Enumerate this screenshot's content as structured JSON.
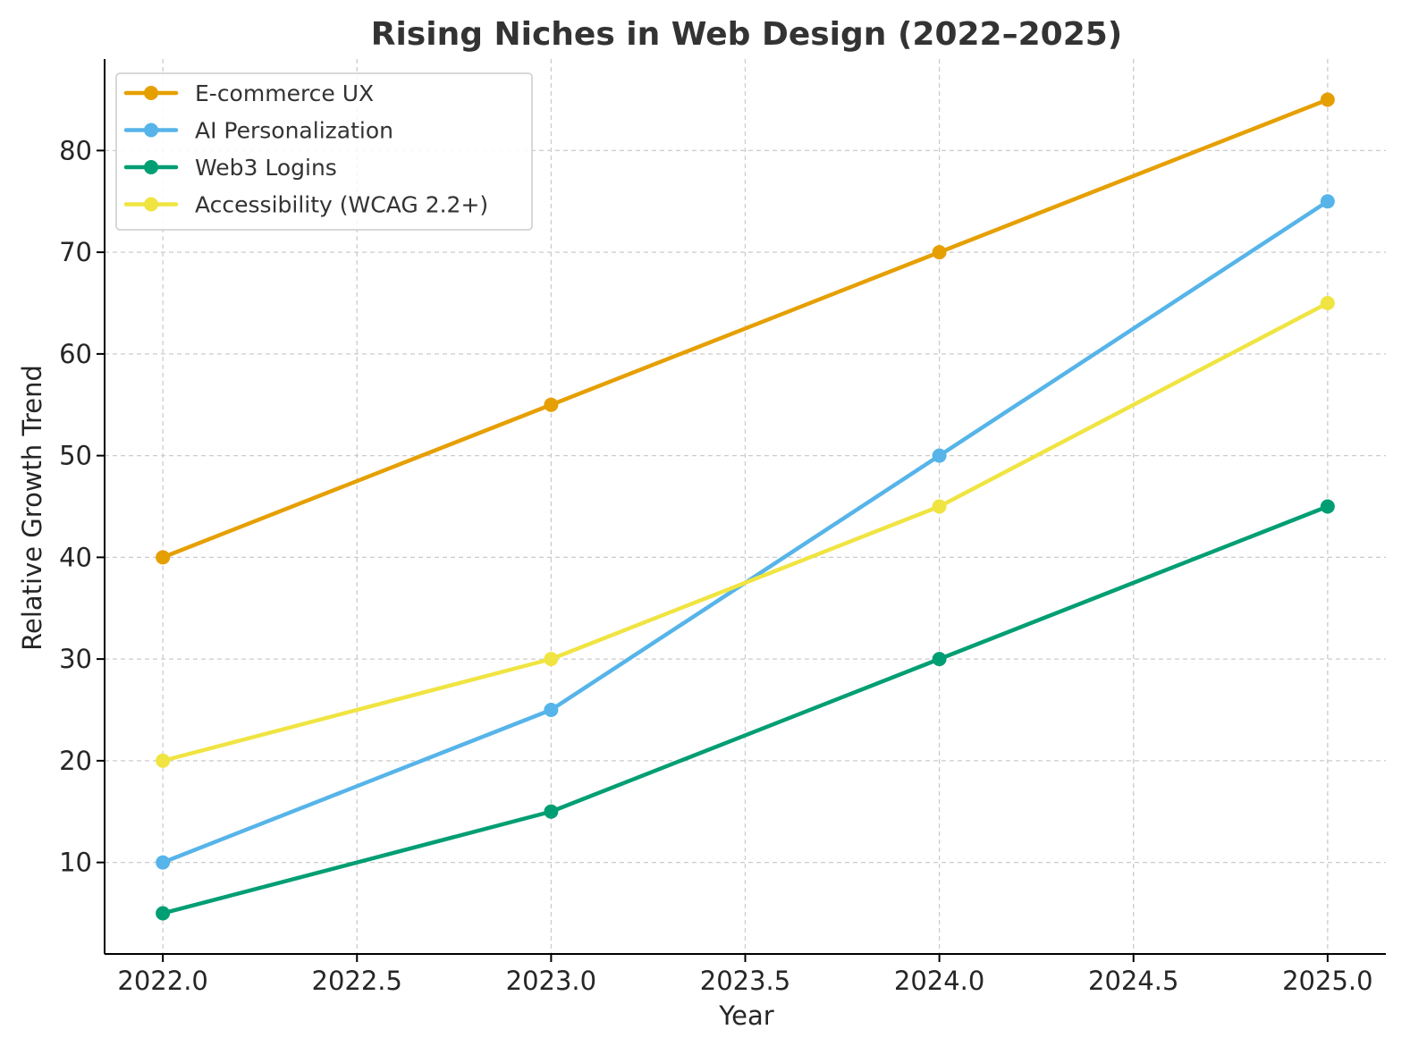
{
  "chart_data": {
    "type": "line",
    "title": "Rising Niches in Web Design (2022–2025)",
    "xlabel": "Year",
    "ylabel": "Relative Growth Trend",
    "x": [
      2022,
      2023,
      2024,
      2025
    ],
    "xticks": [
      "2022.0",
      "2022.5",
      "2023.0",
      "2023.5",
      "2024.0",
      "2024.5",
      "2025.0"
    ],
    "yticks": [
      "10",
      "20",
      "30",
      "40",
      "50",
      "60",
      "70",
      "80"
    ],
    "xlim": [
      2021.85,
      2025.15
    ],
    "ylim": [
      1,
      89
    ],
    "grid": true,
    "legend_position": "top-left",
    "series": [
      {
        "name": "E-commerce UX",
        "color": "#E69F00",
        "values": [
          40,
          55,
          70,
          85
        ]
      },
      {
        "name": "AI Personalization",
        "color": "#56B4E9",
        "values": [
          10,
          25,
          50,
          75
        ]
      },
      {
        "name": "Web3 Logins",
        "color": "#009E73",
        "values": [
          5,
          15,
          30,
          45
        ]
      },
      {
        "name": "Accessibility (WCAG 2.2+)",
        "color": "#F0E442",
        "values": [
          20,
          30,
          45,
          65
        ]
      }
    ]
  }
}
